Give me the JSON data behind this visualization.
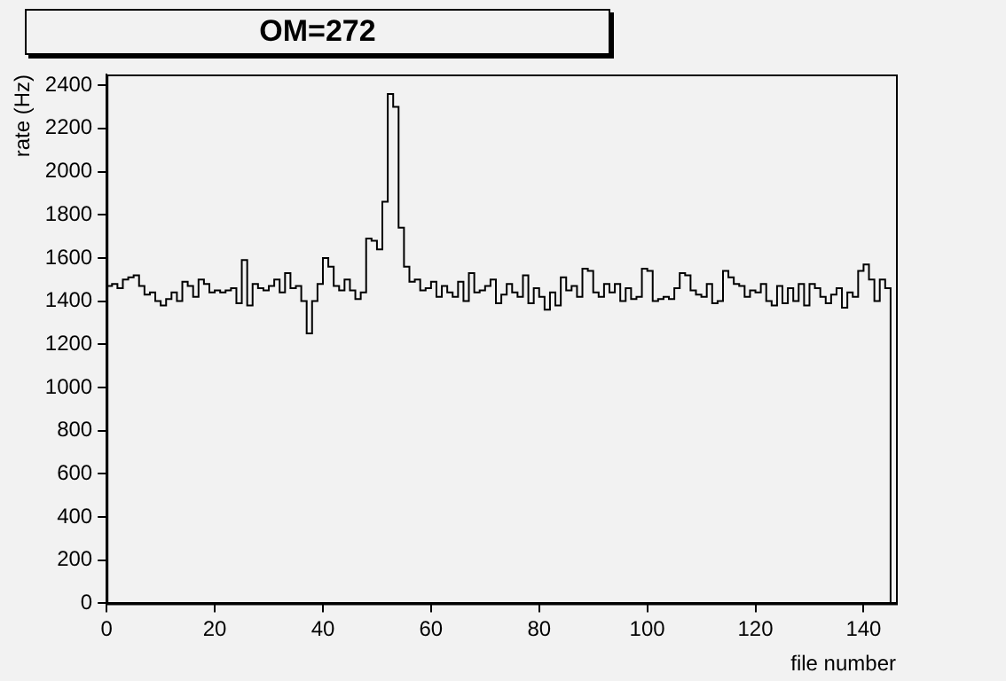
{
  "chart_data": {
    "type": "histogram",
    "title": "OM=272",
    "xlabel": "file number",
    "ylabel": "rate (Hz)",
    "bins": [
      0,
      1,
      2,
      3,
      4,
      5,
      6,
      7,
      8,
      9,
      10,
      11,
      12,
      13,
      14,
      15,
      16,
      17,
      18,
      19,
      20,
      21,
      22,
      23,
      24,
      25,
      26,
      27,
      28,
      29,
      30,
      31,
      32,
      33,
      34,
      35,
      36,
      37,
      38,
      39,
      40,
      41,
      42,
      43,
      44,
      45,
      46,
      47,
      48,
      49,
      50,
      51,
      52,
      53,
      54,
      55,
      56,
      57,
      58,
      59,
      60,
      61,
      62,
      63,
      64,
      65,
      66,
      67,
      68,
      69,
      70,
      71,
      72,
      73,
      74,
      75,
      76,
      77,
      78,
      79,
      80,
      81,
      82,
      83,
      84,
      85,
      86,
      87,
      88,
      89,
      90,
      91,
      92,
      93,
      94,
      95,
      96,
      97,
      98,
      99,
      100,
      101,
      102,
      103,
      104,
      105,
      106,
      107,
      108,
      109,
      110,
      111,
      112,
      113,
      114,
      115,
      116,
      117,
      118,
      119,
      120,
      121,
      122,
      123,
      124,
      125,
      126,
      127,
      128,
      129,
      130,
      131,
      132,
      133,
      134,
      135,
      136,
      137,
      138,
      139,
      140,
      141,
      142,
      143,
      144,
      145
    ],
    "values": [
      1470,
      1480,
      1460,
      1500,
      1510,
      1520,
      1470,
      1430,
      1440,
      1400,
      1380,
      1410,
      1440,
      1400,
      1490,
      1470,
      1420,
      1500,
      1480,
      1440,
      1450,
      1440,
      1450,
      1460,
      1390,
      1590,
      1380,
      1480,
      1460,
      1450,
      1470,
      1500,
      1440,
      1530,
      1460,
      1470,
      1400,
      1250,
      1400,
      1480,
      1600,
      1560,
      1470,
      1450,
      1500,
      1450,
      1410,
      1440,
      1690,
      1680,
      1640,
      1860,
      2360,
      2300,
      1740,
      1560,
      1490,
      1500,
      1450,
      1460,
      1490,
      1420,
      1470,
      1440,
      1420,
      1490,
      1400,
      1530,
      1440,
      1450,
      1470,
      1500,
      1390,
      1430,
      1480,
      1440,
      1420,
      1520,
      1390,
      1460,
      1420,
      1360,
      1440,
      1380,
      1510,
      1450,
      1470,
      1420,
      1550,
      1540,
      1440,
      1420,
      1480,
      1440,
      1480,
      1400,
      1460,
      1410,
      1420,
      1550,
      1540,
      1400,
      1410,
      1420,
      1410,
      1460,
      1530,
      1520,
      1450,
      1430,
      1420,
      1480,
      1390,
      1400,
      1540,
      1510,
      1480,
      1470,
      1420,
      1450,
      1440,
      1480,
      1400,
      1380,
      1470,
      1390,
      1460,
      1400,
      1480,
      1380,
      1480,
      1460,
      1420,
      1390,
      1430,
      1460,
      1370,
      1440,
      1420,
      1540,
      1570,
      1500,
      1400,
      1500,
      1460
    ],
    "color": "#000000",
    "xlim": [
      0,
      146
    ],
    "xticks": [
      0,
      20,
      40,
      60,
      80,
      100,
      120,
      140
    ],
    "ylim": [
      0,
      2450
    ],
    "yticks": [
      0,
      200,
      400,
      600,
      800,
      1000,
      1200,
      1400,
      1600,
      1800,
      2000,
      2200,
      2400
    ],
    "grid": false,
    "legend": false
  }
}
